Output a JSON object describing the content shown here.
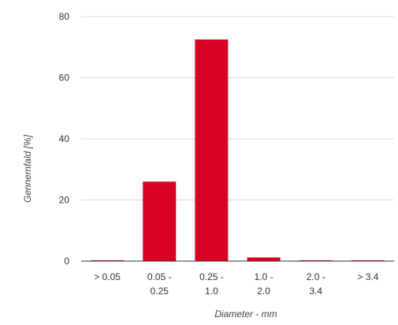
{
  "chart_data": {
    "type": "bar",
    "categories": [
      [
        "> 0.05"
      ],
      [
        "0.05 -",
        "0.25"
      ],
      [
        "0.25 -",
        "1.0"
      ],
      [
        "1.0 -",
        "2.0"
      ],
      [
        "2.0 -",
        "3.4"
      ],
      [
        "> 3.4"
      ]
    ],
    "values": [
      0.2,
      26,
      72.5,
      1.2,
      0.2,
      0.2
    ],
    "xlabel": "Diameter - mm",
    "ylabel": "Gennemfald [%]",
    "ylim": [
      0,
      80
    ],
    "yticks": [
      0,
      20,
      40,
      60,
      80
    ],
    "grid": true,
    "bar_color": "#d90026"
  }
}
